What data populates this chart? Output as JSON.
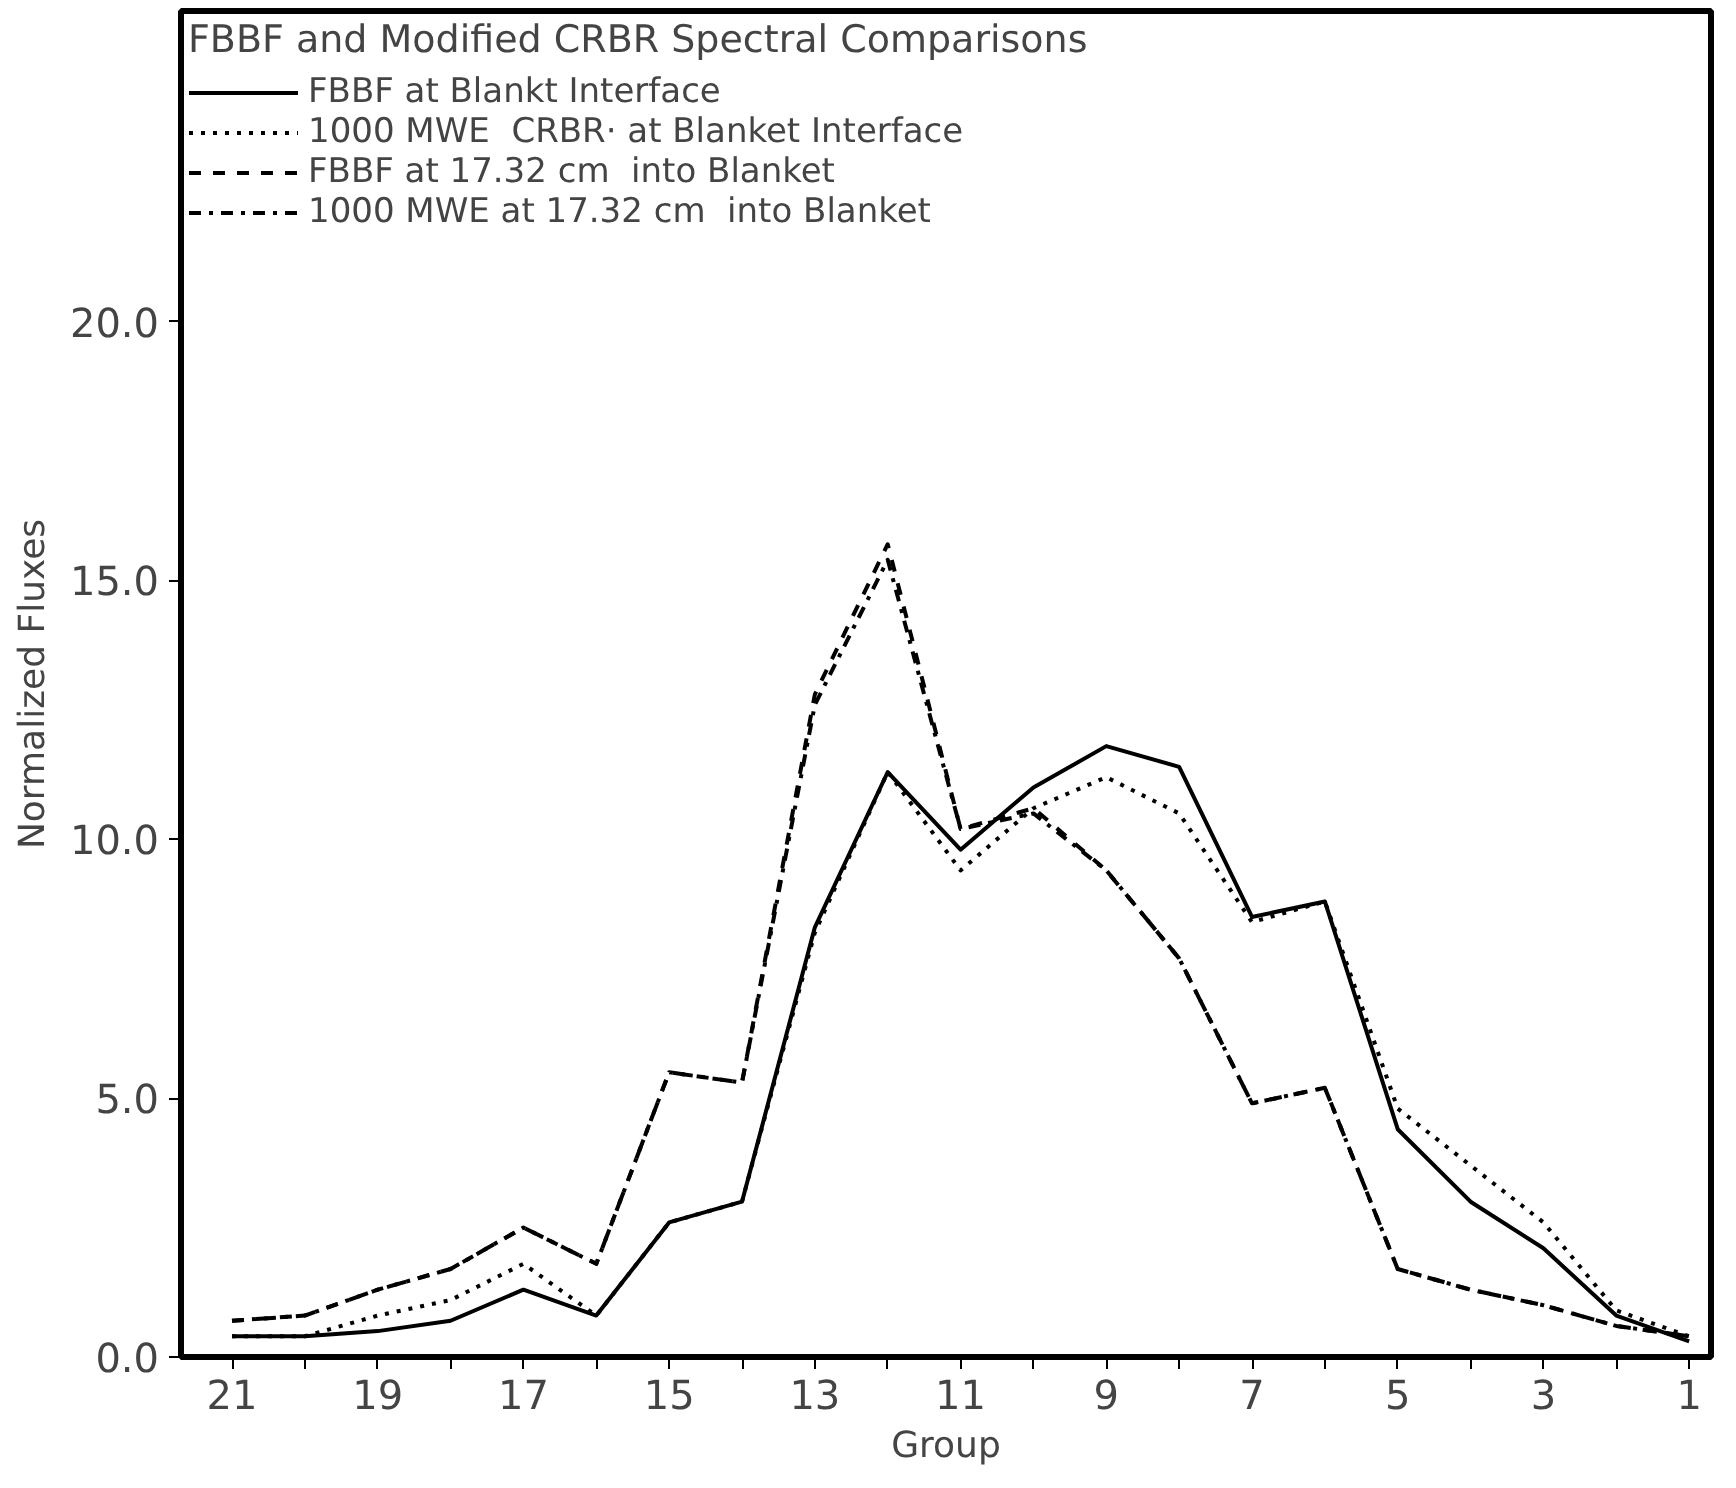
{
  "chart_data": {
    "type": "line",
    "title": "FBBF and Modified CRBR Spectral Comparisons",
    "xlabel": "Group",
    "ylabel": "Normalized Fluxes",
    "x": [
      21,
      20,
      19,
      18,
      17,
      16,
      15,
      14,
      13,
      12,
      11,
      10,
      9,
      8,
      7,
      6,
      5,
      4,
      3,
      2,
      1
    ],
    "series": [
      {
        "name": "FBBF at Blankt Interface",
        "color": "#000000",
        "line_style": "solid",
        "values": [
          0.4,
          0.4,
          0.5,
          0.7,
          1.3,
          0.8,
          2.6,
          3.0,
          8.3,
          11.3,
          9.8,
          11.0,
          11.8,
          11.4,
          8.5,
          8.8,
          4.4,
          3.0,
          2.1,
          0.8,
          0.3
        ]
      },
      {
        "name": "1000 MWE  CRBR· at Blanket Interface",
        "color": "#000000",
        "line_style": "dotted",
        "values": [
          0.4,
          0.4,
          0.8,
          1.1,
          1.8,
          0.8,
          2.6,
          3.0,
          8.2,
          11.3,
          9.4,
          10.6,
          11.2,
          10.5,
          8.4,
          8.8,
          4.8,
          3.7,
          2.6,
          0.9,
          0.4
        ]
      },
      {
        "name": "FBBF at 17.32 cm  into Blanket",
        "color": "#000000",
        "line_style": "dashed",
        "values": [
          0.7,
          0.8,
          1.3,
          1.7,
          2.5,
          1.8,
          5.5,
          5.3,
          12.8,
          15.7,
          10.2,
          10.6,
          9.4,
          7.7,
          4.9,
          5.2,
          1.7,
          1.3,
          1.0,
          0.6,
          0.4
        ]
      },
      {
        "name": "1000 MWE at 17.32 cm  into Blanket",
        "color": "#000000",
        "line_style": "dashdot",
        "values": [
          0.7,
          0.8,
          1.3,
          1.7,
          2.5,
          1.8,
          5.5,
          5.3,
          12.6,
          15.4,
          10.2,
          10.5,
          9.4,
          7.7,
          4.9,
          5.2,
          1.7,
          1.3,
          1.0,
          0.6,
          0.4
        ]
      }
    ],
    "xlim": [
      21.7,
      0.7
    ],
    "xticks": [
      21,
      {
        "value": 20,
        "label": null
      },
      19,
      {
        "value": 18,
        "label": null
      },
      17,
      {
        "value": 16,
        "label": null
      },
      15,
      {
        "value": 14,
        "label": null
      },
      13,
      {
        "value": 12,
        "label": null
      },
      11,
      {
        "value": 10,
        "label": null
      },
      9,
      {
        "value": 8,
        "label": null
      },
      7,
      {
        "value": 6,
        "label": null
      },
      5,
      {
        "value": 4,
        "label": null
      },
      3,
      {
        "value": 2,
        "label": null
      },
      1
    ],
    "ylim": [
      0,
      26
    ],
    "yticks": [
      {
        "value": 0,
        "label": "0.0"
      },
      {
        "value": 5,
        "label": "5.0"
      },
      {
        "value": 10,
        "label": "10.0"
      },
      {
        "value": 15,
        "label": "15.0"
      },
      {
        "value": 20,
        "label": "20.0"
      }
    ],
    "grid": false,
    "legend": "top left",
    "marker": "none"
  }
}
